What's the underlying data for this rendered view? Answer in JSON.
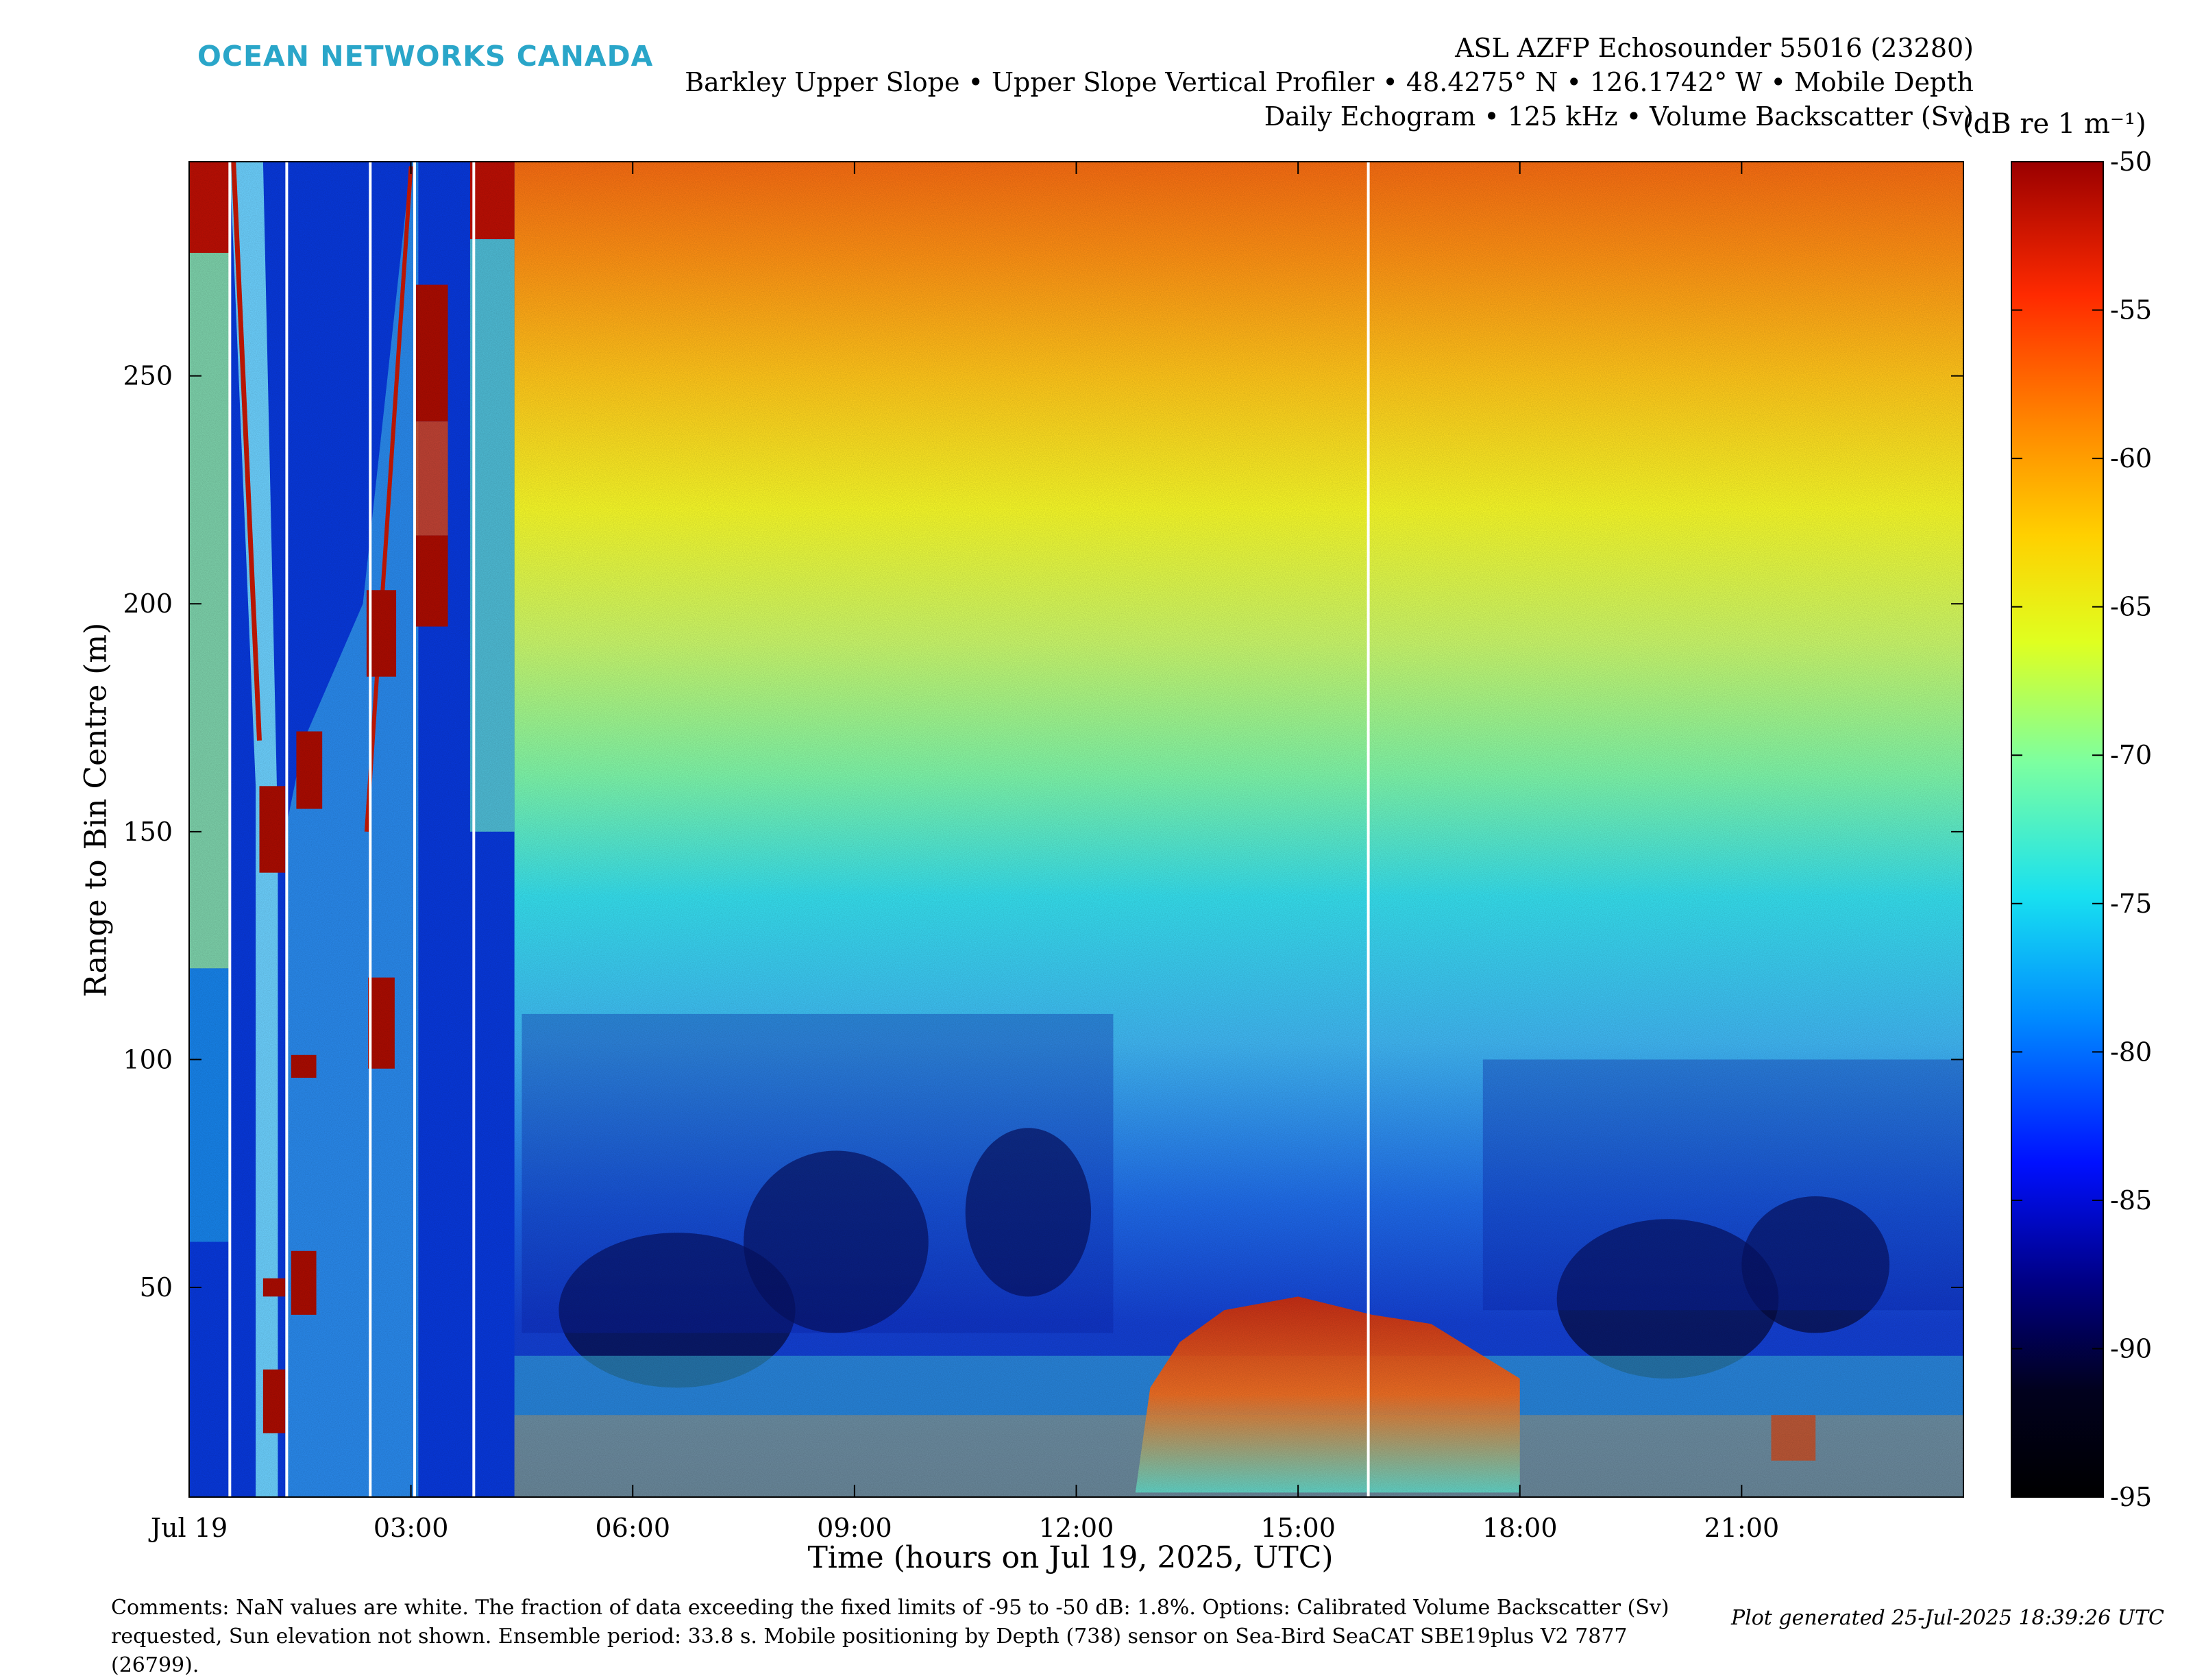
{
  "brand": "OCEAN NETWORKS CANADA",
  "header": {
    "line1": "ASL AZFP Echosounder 55016 (23280)",
    "line2": "Barkley Upper Slope • Upper Slope Vertical Profiler • 48.4275° N • 126.1742° W • Mobile Depth",
    "line3": "Daily Echogram • 125 kHz • Volume Backscatter (Sv)"
  },
  "chart_data": {
    "type": "heatmap",
    "title": "Daily Echogram • 125 kHz • Volume Backscatter (Sv)",
    "xlabel": "Time (hours on Jul 19, 2025, UTC)",
    "ylabel": "Range to Bin Centre (m)",
    "x_range_hours": [
      0,
      24
    ],
    "x_ticks": [
      {
        "hour": 0,
        "label": "Jul 19"
      },
      {
        "hour": 3,
        "label": "03:00"
      },
      {
        "hour": 6,
        "label": "06:00"
      },
      {
        "hour": 9,
        "label": "09:00"
      },
      {
        "hour": 12,
        "label": "12:00"
      },
      {
        "hour": 15,
        "label": "15:00"
      },
      {
        "hour": 18,
        "label": "18:00"
      },
      {
        "hour": 21,
        "label": "21:00"
      }
    ],
    "y_range_m": [
      4,
      297
    ],
    "y_ticks": [
      50,
      100,
      150,
      200,
      250
    ],
    "colorbar": {
      "unit": "(dB re 1 m⁻¹)",
      "range_db": [
        -95,
        -50
      ],
      "ticks": [
        -50,
        -55,
        -60,
        -65,
        -70,
        -75,
        -80,
        -85,
        -90,
        -95
      ],
      "colormap": "jet (black at -95 dB)"
    },
    "regions": [
      {
        "name": "profiler ascents and descents with stepped strong echoes",
        "hours": [
          0,
          4.4
        ]
      },
      {
        "name": "strong backscatter layer near bottom",
        "hours": [
          12.8,
          18.0
        ],
        "range_m": [
          5,
          48
        ],
        "sv_db": -52
      },
      {
        "name": "gradient: high Sv at far range",
        "range_m": [
          250,
          297
        ],
        "sv_db": -58
      },
      {
        "name": "weak mid-column water",
        "range_m": [
          40,
          110
        ],
        "sv_db": -84
      }
    ],
    "nan_columns_hours": [
      0.55,
      1.32,
      2.45,
      3.05,
      3.85,
      15.95
    ]
  },
  "comments": "Comments: NaN values are white. The fraction of data exceeding the fixed limits of -95 to -50 dB: 1.8%. Options: Calibrated Volume Backscatter (Sv) requested, Sun elevation not shown. Ensemble period: 33.8 s. Mobile positioning by Depth (738) sensor on Sea-Bird SeaCAT SBE19plus V2 7877 (26799).",
  "generated": "Plot generated 25-Jul-2025 18:39:26 UTC"
}
